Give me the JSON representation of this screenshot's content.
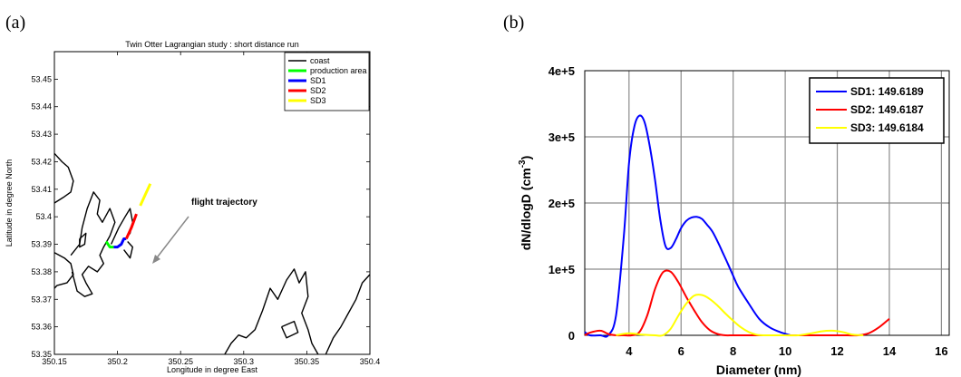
{
  "labels": {
    "panel_a": "(a)",
    "panel_b": "(b)"
  },
  "chart_data": [
    {
      "type": "line",
      "title": "Twin Otter Lagrangian study : short distance run",
      "xlabel": "Longitude in degree East",
      "ylabel": "Latitude in degree North",
      "xlim": [
        350.15,
        350.4
      ],
      "ylim": [
        53.35,
        53.46
      ],
      "xticks": [
        "350.15",
        "350.2",
        "350.25",
        "350.3",
        "350.35",
        "350.4"
      ],
      "yticks": [
        "53.35",
        "53.36",
        "53.37",
        "53.38",
        "53.39",
        "53.4",
        "53.41",
        "53.42",
        "53.43",
        "53.44",
        "53.45"
      ],
      "legend_position": "top-right",
      "annotation": "flight trajectory",
      "series": [
        {
          "name": "coast",
          "color": "#000000",
          "segments": [
            [
              [
                350.15,
                53.423
              ],
              [
                350.156,
                53.42
              ],
              [
                350.161,
                53.418
              ],
              [
                350.165,
                53.413
              ],
              [
                350.163,
                53.409
              ],
              [
                350.157,
                53.407
              ],
              [
                350.15,
                53.405
              ]
            ],
            [
              [
                350.15,
                53.387
              ],
              [
                350.158,
                53.385
              ],
              [
                350.163,
                53.383
              ],
              [
                350.165,
                53.379
              ],
              [
                350.16,
                53.376
              ],
              [
                350.152,
                53.375
              ],
              [
                350.15,
                53.374
              ]
            ],
            [
              [
                350.163,
                53.386
              ],
              [
                350.17,
                53.39
              ],
              [
                350.172,
                53.396
              ],
              [
                350.176,
                53.403
              ],
              [
                350.181,
                53.409
              ],
              [
                350.186,
                53.406
              ],
              [
                350.184,
                53.401
              ],
              [
                350.188,
                53.398
              ],
              [
                350.194,
                53.403
              ],
              [
                350.198,
                53.398
              ],
              [
                350.194,
                53.393
              ],
              [
                350.189,
                53.389
              ],
              [
                350.186,
                53.386
              ],
              [
                350.189,
                53.383
              ],
              [
                350.184,
                53.38
              ],
              [
                350.177,
                53.382
              ],
              [
                350.172,
                53.379
              ],
              [
                350.175,
                53.376
              ],
              [
                350.18,
                53.372
              ],
              [
                350.174,
                53.371
              ],
              [
                350.168,
                53.373
              ],
              [
                350.164,
                53.38
              ]
            ],
            [
              [
                350.195,
                53.39
              ],
              [
                350.201,
                53.396
              ],
              [
                350.206,
                53.4
              ],
              [
                350.21,
                53.403
              ],
              [
                350.212,
                53.398
              ],
              [
                350.21,
                53.394
              ],
              [
                350.206,
                53.392
              ]
            ],
            [
              [
                350.205,
                53.388
              ],
              [
                350.21,
                53.385
              ],
              [
                350.212,
                53.389
              ],
              [
                350.208,
                53.391
              ]
            ],
            [
              [
                350.17,
                53.392
              ],
              [
                350.175,
                53.394
              ],
              [
                350.174,
                53.39
              ],
              [
                350.17,
                53.389
              ],
              [
                350.17,
                53.392
              ]
            ],
            [
              [
                350.285,
                53.35
              ],
              [
                350.29,
                53.354
              ],
              [
                350.296,
                53.357
              ],
              [
                350.302,
                53.356
              ],
              [
                350.309,
                53.359
              ],
              [
                350.315,
                53.366
              ],
              [
                350.321,
                53.374
              ],
              [
                350.327,
                53.37
              ],
              [
                350.334,
                53.377
              ],
              [
                350.34,
                53.381
              ],
              [
                350.344,
                53.376
              ],
              [
                350.349,
                53.38
              ],
              [
                350.351,
                53.371
              ],
              [
                350.346,
                53.365
              ],
              [
                350.351,
                53.359
              ],
              [
                350.354,
                53.354
              ],
              [
                350.359,
                53.35
              ]
            ],
            [
              [
                350.33,
                53.36
              ],
              [
                350.34,
                53.362
              ],
              [
                350.343,
                53.358
              ],
              [
                350.334,
                53.356
              ],
              [
                350.33,
                53.36
              ]
            ],
            [
              [
                350.365,
                53.35
              ],
              [
                350.371,
                53.356
              ],
              [
                350.377,
                53.36
              ],
              [
                350.383,
                53.365
              ],
              [
                350.389,
                53.37
              ],
              [
                350.394,
                53.376
              ],
              [
                350.4,
                53.379
              ]
            ]
          ]
        },
        {
          "name": "production area",
          "color": "#00ff00",
          "segments": [
            [
              [
                350.191,
                53.391
              ],
              [
                350.194,
                53.389
              ],
              [
                350.197,
                53.389
              ]
            ]
          ]
        },
        {
          "name": "SD1",
          "color": "#0000ff",
          "segments": [
            [
              [
                350.197,
                53.389
              ],
              [
                350.2,
                53.389
              ],
              [
                350.203,
                53.39
              ],
              [
                350.205,
                53.392
              ],
              [
                350.207,
                53.392
              ]
            ]
          ]
        },
        {
          "name": "SD2",
          "color": "#ff0000",
          "segments": [
            [
              [
                350.207,
                53.392
              ],
              [
                350.211,
                53.396
              ],
              [
                350.215,
                53.401
              ]
            ]
          ]
        },
        {
          "name": "SD3",
          "color": "#ffff00",
          "segments": [
            [
              [
                350.218,
                53.404
              ],
              [
                350.222,
                53.408
              ],
              [
                350.226,
                53.412
              ]
            ]
          ]
        }
      ]
    },
    {
      "type": "line",
      "xlabel": "Diameter (nm)",
      "ylabel": "dN/dlogD (cm-3)",
      "xlim": [
        2.3,
        16.3
      ],
      "ylim": [
        0,
        400000
      ],
      "xticks": [
        4,
        6,
        8,
        10,
        12,
        14,
        16
      ],
      "ytick_values": [
        0,
        100000,
        200000,
        300000,
        400000
      ],
      "yticks": [
        "0",
        "1e+5",
        "2e+5",
        "3e+5",
        "4e+5"
      ],
      "grid": true,
      "legend_position": "top-right",
      "series": [
        {
          "name": "SD1: 149.6189",
          "color": "#0000ff",
          "x": [
            2.3,
            2.5,
            2.9,
            3.2,
            3.5,
            3.8,
            4.0,
            4.2,
            4.4,
            4.6,
            4.8,
            5.0,
            5.2,
            5.4,
            5.6,
            5.8,
            6.0,
            6.2,
            6.4,
            6.6,
            6.8,
            7.0,
            7.2,
            7.4,
            7.6,
            7.8,
            8.0,
            8.2,
            8.6,
            9.0,
            9.4,
            9.8,
            10.2
          ],
          "y": [
            5000,
            0,
            0,
            0,
            30000,
            150000,
            260000,
            315000,
            332000,
            322000,
            285000,
            235000,
            175000,
            135000,
            132000,
            145000,
            162000,
            173000,
            178000,
            179000,
            176000,
            167000,
            157000,
            142000,
            125000,
            108000,
            90000,
            73000,
            48000,
            25000,
            12000,
            5000,
            0
          ]
        },
        {
          "name": "SD2: 149.6187",
          "color": "#ff0000",
          "x": [
            2.3,
            2.5,
            2.9,
            3.2,
            3.5,
            3.8,
            4.1,
            4.4,
            4.7,
            5.0,
            5.3,
            5.6,
            5.9,
            6.2,
            6.5,
            6.8,
            7.1,
            7.4,
            7.7,
            8.0,
            8.5,
            9.0,
            9.5,
            10.0,
            10.5,
            11.0,
            11.5,
            12.0,
            12.4,
            12.8,
            13.2,
            13.6,
            14.0
          ],
          "y": [
            0,
            4000,
            7000,
            2000,
            0,
            0,
            0,
            5000,
            30000,
            70000,
            95000,
            96000,
            80000,
            58000,
            38000,
            20000,
            8000,
            2000,
            0,
            0,
            0,
            0,
            0,
            0,
            0,
            0,
            0,
            0,
            0,
            0,
            3000,
            12000,
            25000
          ]
        },
        {
          "name": "SD3: 149.6184",
          "color": "#ffff00",
          "x": [
            3.5,
            4.0,
            4.5,
            5.0,
            5.3,
            5.6,
            5.9,
            6.2,
            6.5,
            6.8,
            7.1,
            7.4,
            7.7,
            8.0,
            8.3,
            8.6,
            8.9,
            9.2,
            9.6,
            10.0,
            10.5,
            11.0,
            11.4,
            11.8,
            12.2,
            12.6,
            13.0
          ],
          "y": [
            0,
            3000,
            1000,
            0,
            0,
            10000,
            30000,
            48000,
            60000,
            61000,
            55000,
            45000,
            33000,
            22000,
            12000,
            5000,
            1000,
            0,
            0,
            0,
            0,
            3000,
            6000,
            7000,
            5000,
            1000,
            0
          ]
        }
      ]
    }
  ]
}
